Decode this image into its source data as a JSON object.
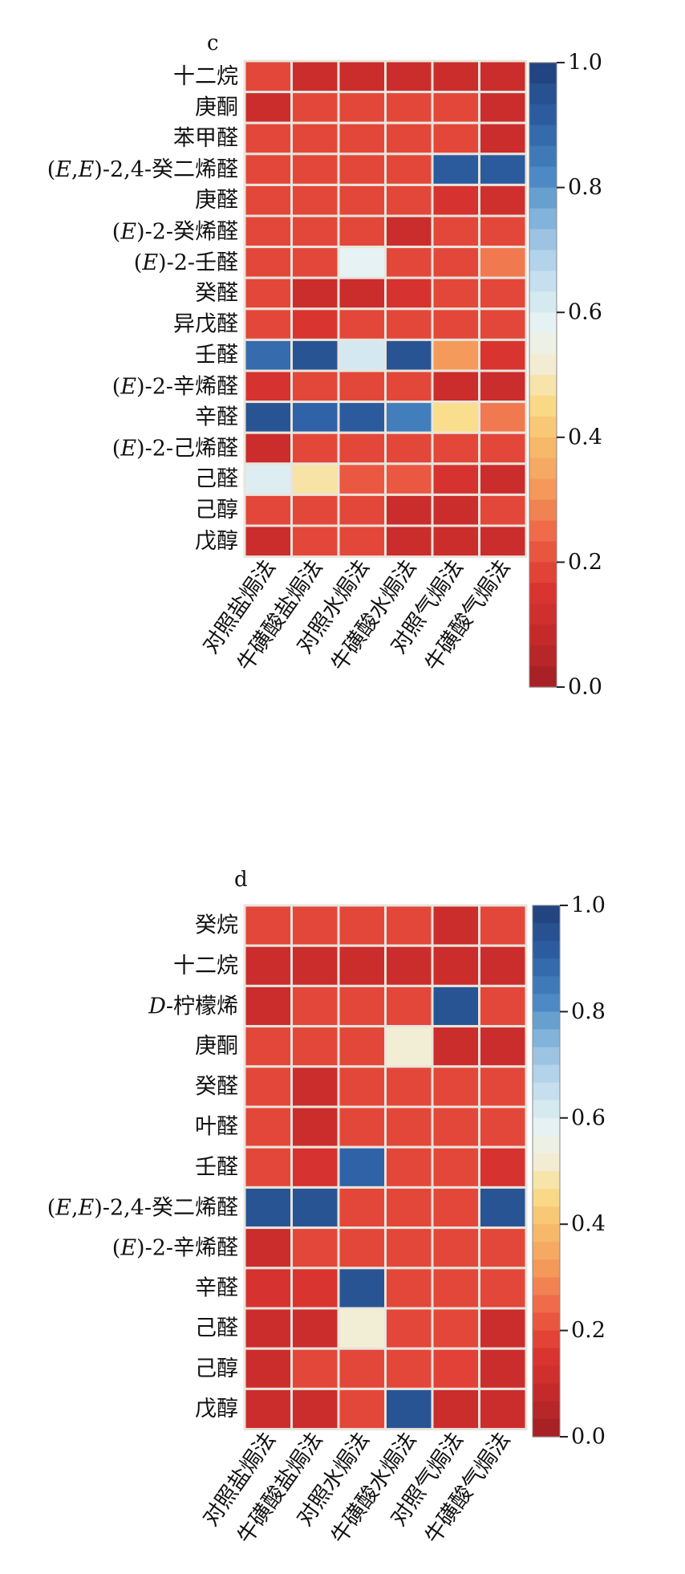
{
  "colorbar": {
    "ticks": [
      "1.0",
      "0.8",
      "0.6",
      "0.4",
      "0.2",
      "0.0"
    ],
    "stops": [
      {
        "v": 0.0,
        "c": "#a11f24"
      },
      {
        "v": 0.08,
        "c": "#c42a2a"
      },
      {
        "v": 0.16,
        "c": "#dc3530"
      },
      {
        "v": 0.24,
        "c": "#ee6447"
      },
      {
        "v": 0.32,
        "c": "#f49b5b"
      },
      {
        "v": 0.4,
        "c": "#f7c06d"
      },
      {
        "v": 0.46,
        "c": "#f9de8e"
      },
      {
        "v": 0.52,
        "c": "#f2eed6"
      },
      {
        "v": 0.58,
        "c": "#e6f2f3"
      },
      {
        "v": 0.64,
        "c": "#cbe3f0"
      },
      {
        "v": 0.7,
        "c": "#a9cde6"
      },
      {
        "v": 0.76,
        "c": "#7aaed7"
      },
      {
        "v": 0.82,
        "c": "#4a87c3"
      },
      {
        "v": 0.9,
        "c": "#2f62a6"
      },
      {
        "v": 1.0,
        "c": "#1f3f7a"
      }
    ]
  },
  "chart_data": [
    {
      "type": "heatmap",
      "title": "c",
      "rows": [
        "十二烷",
        "庚酮",
        "苯甲醛",
        "(E,E)-2,4-癸二烯醛",
        "庚醛",
        "(E)-2-癸烯醛",
        "(E)-2-壬醛",
        "癸醛",
        "异戊醛",
        "壬醛",
        "(E)-2-辛烯醛",
        "辛醛",
        "(E)-2-己烯醛",
        "己醛",
        "己醇",
        "戊醇"
      ],
      "columns": [
        "对照盐焗法",
        "牛磺酸盐焗法",
        "对照水焗法",
        "牛磺酸水焗法",
        "对照气焗法",
        "牛磺酸气焗法"
      ],
      "values": [
        [
          0.19,
          0.1,
          0.1,
          0.1,
          0.1,
          0.1
        ],
        [
          0.1,
          0.19,
          0.19,
          0.19,
          0.19,
          0.1
        ],
        [
          0.19,
          0.19,
          0.19,
          0.19,
          0.19,
          0.1
        ],
        [
          0.19,
          0.19,
          0.19,
          0.19,
          0.92,
          0.92
        ],
        [
          0.19,
          0.19,
          0.19,
          0.19,
          0.14,
          0.12
        ],
        [
          0.19,
          0.19,
          0.19,
          0.1,
          0.19,
          0.19
        ],
        [
          0.19,
          0.19,
          0.58,
          0.19,
          0.19,
          0.27
        ],
        [
          0.19,
          0.1,
          0.1,
          0.14,
          0.19,
          0.19
        ],
        [
          0.19,
          0.15,
          0.19,
          0.19,
          0.19,
          0.19
        ],
        [
          0.88,
          0.94,
          0.62,
          0.94,
          0.32,
          0.15
        ],
        [
          0.14,
          0.19,
          0.19,
          0.19,
          0.1,
          0.1
        ],
        [
          0.94,
          0.9,
          0.92,
          0.84,
          0.46,
          0.27
        ],
        [
          0.1,
          0.19,
          0.19,
          0.19,
          0.19,
          0.19
        ],
        [
          0.6,
          0.48,
          0.22,
          0.22,
          0.14,
          0.1
        ],
        [
          0.19,
          0.19,
          0.19,
          0.1,
          0.1,
          0.19
        ],
        [
          0.1,
          0.19,
          0.19,
          0.1,
          0.1,
          0.1
        ]
      ],
      "colorbar_range": [
        0.0,
        1.0
      ]
    },
    {
      "type": "heatmap",
      "title": "d",
      "rows": [
        "癸烷",
        "十二烷",
        "D-柠檬烯",
        "庚酮",
        "癸醛",
        "叶醛",
        "壬醛",
        "(E,E)-2,4-癸二烯醛",
        "(E)-2-辛烯醛",
        "辛醛",
        "己醛",
        "己醇",
        "戊醇"
      ],
      "columns": [
        "对照盐焗法",
        "牛磺酸盐焗法",
        "对照水焗法",
        "牛磺酸水焗法",
        "对照气焗法",
        "牛磺酸气焗法"
      ],
      "values": [
        [
          0.19,
          0.19,
          0.19,
          0.19,
          0.1,
          0.19
        ],
        [
          0.1,
          0.1,
          0.1,
          0.1,
          0.1,
          0.1
        ],
        [
          0.1,
          0.19,
          0.19,
          0.19,
          0.94,
          0.19
        ],
        [
          0.19,
          0.19,
          0.19,
          0.52,
          0.1,
          0.1
        ],
        [
          0.19,
          0.1,
          0.19,
          0.19,
          0.19,
          0.19
        ],
        [
          0.19,
          0.1,
          0.19,
          0.19,
          0.19,
          0.19
        ],
        [
          0.19,
          0.14,
          0.9,
          0.19,
          0.19,
          0.14
        ],
        [
          0.94,
          0.94,
          0.19,
          0.19,
          0.19,
          0.94
        ],
        [
          0.1,
          0.19,
          0.19,
          0.19,
          0.19,
          0.19
        ],
        [
          0.14,
          0.15,
          0.94,
          0.19,
          0.19,
          0.19
        ],
        [
          0.1,
          0.1,
          0.52,
          0.19,
          0.19,
          0.1
        ],
        [
          0.1,
          0.19,
          0.19,
          0.19,
          0.18,
          0.1
        ],
        [
          0.1,
          0.1,
          0.19,
          0.94,
          0.1,
          0.1
        ]
      ],
      "colorbar_range": [
        0.0,
        1.0
      ]
    }
  ]
}
